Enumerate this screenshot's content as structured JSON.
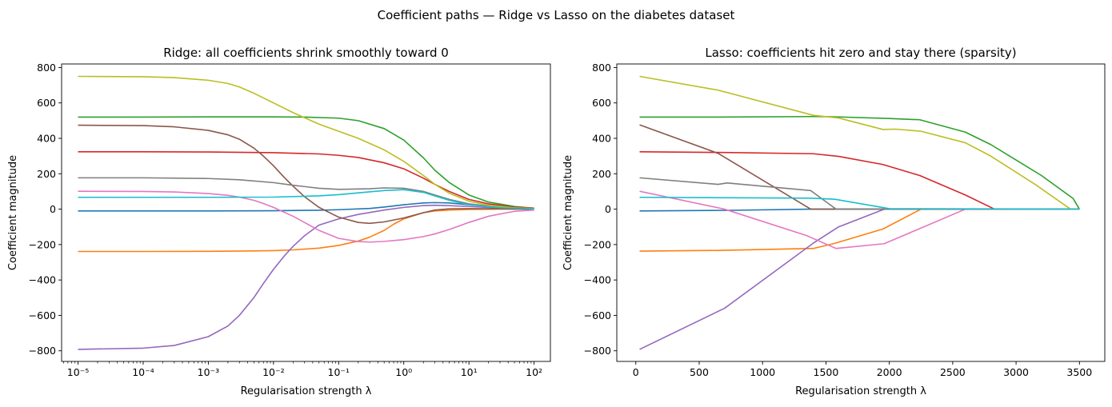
{
  "figure": {
    "suptitle": "Coefficient paths — Ridge vs Lasso on the diabetes dataset"
  },
  "colors": [
    "#1f77b4",
    "#ff7f0e",
    "#2ca02c",
    "#d62728",
    "#9467bd",
    "#8c564b",
    "#e377c2",
    "#7f7f7f",
    "#bcbd22",
    "#17becf"
  ],
  "chart_data": [
    {
      "type": "line",
      "title": "Ridge: all coefficients shrink smoothly toward 0",
      "xlabel": "Regularisation strength λ",
      "ylabel": "Coefficient magnitude",
      "xscale": "log",
      "xlim": [
        5.6e-06,
        178
      ],
      "ylim": [
        -860,
        820
      ],
      "xticks": [
        1e-05,
        0.0001,
        0.001,
        0.01,
        0.1,
        1,
        10,
        100
      ],
      "xtick_labels": [
        "10⁻⁵",
        "10⁻⁴",
        "10⁻³",
        "10⁻²",
        "10⁻¹",
        "10⁰",
        "10¹",
        "10²"
      ],
      "yticks": [
        -800,
        -600,
        -400,
        -200,
        0,
        200,
        400,
        600,
        800
      ],
      "ytick_labels": [
        "−800",
        "−600",
        "−400",
        "−200",
        "0",
        "200",
        "400",
        "600",
        "800"
      ],
      "grid": false,
      "series": [
        {
          "x": [
            1e-05,
            0.0001,
            0.001,
            0.01,
            0.05,
            0.1,
            0.3,
            0.5,
            1,
            2,
            3,
            5,
            10,
            30,
            100
          ],
          "y": [
            -10,
            -10,
            -10,
            -9,
            -6,
            -3,
            4,
            12,
            25,
            35,
            37,
            35,
            25,
            12,
            3
          ]
        },
        {
          "x": [
            1e-05,
            0.0001,
            0.001,
            0.005,
            0.01,
            0.02,
            0.05,
            0.1,
            0.2,
            0.3,
            0.5,
            0.7,
            1,
            2,
            3,
            5,
            10,
            30,
            100
          ],
          "y": [
            -239,
            -239,
            -238,
            -236,
            -234,
            -230,
            -220,
            -205,
            -180,
            -158,
            -120,
            -85,
            -55,
            -20,
            -10,
            -5,
            -2,
            0,
            0
          ]
        },
        {
          "x": [
            1e-05,
            0.0001,
            0.001,
            0.01,
            0.03,
            0.1,
            0.2,
            0.5,
            1,
            2,
            3,
            5,
            10,
            20,
            50,
            100
          ],
          "y": [
            520,
            520,
            521,
            521,
            520,
            514,
            500,
            455,
            390,
            290,
            220,
            150,
            80,
            40,
            15,
            6
          ]
        },
        {
          "x": [
            1e-05,
            0.0001,
            0.001,
            0.01,
            0.05,
            0.1,
            0.2,
            0.5,
            1,
            2,
            3,
            5,
            10,
            20,
            50,
            100
          ],
          "y": [
            324,
            324,
            323,
            319,
            312,
            304,
            292,
            262,
            228,
            175,
            140,
            100,
            55,
            30,
            12,
            5
          ]
        },
        {
          "x": [
            1e-05,
            0.0001,
            0.0003,
            0.001,
            0.002,
            0.003,
            0.005,
            0.007,
            0.01,
            0.015,
            0.02,
            0.03,
            0.05,
            0.1,
            0.2,
            0.5,
            1,
            2,
            3,
            5,
            10,
            30,
            100
          ],
          "y": [
            -792,
            -785,
            -770,
            -720,
            -660,
            -600,
            -500,
            -420,
            -340,
            -260,
            -210,
            -150,
            -90,
            -55,
            -30,
            -5,
            10,
            20,
            22,
            20,
            15,
            6,
            2
          ]
        },
        {
          "x": [
            1e-05,
            0.0001,
            0.0003,
            0.001,
            0.002,
            0.003,
            0.005,
            0.007,
            0.01,
            0.015,
            0.02,
            0.03,
            0.05,
            0.1,
            0.2,
            0.3,
            0.5,
            1,
            2,
            3,
            5,
            10,
            30,
            100
          ],
          "y": [
            474,
            472,
            465,
            445,
            420,
            395,
            345,
            300,
            245,
            175,
            130,
            70,
            10,
            -45,
            -75,
            -80,
            -72,
            -50,
            -20,
            -5,
            2,
            3,
            2,
            0
          ]
        },
        {
          "x": [
            1e-05,
            0.0001,
            0.0003,
            0.001,
            0.002,
            0.003,
            0.005,
            0.007,
            0.01,
            0.02,
            0.05,
            0.1,
            0.2,
            0.3,
            0.5,
            1,
            2,
            3,
            5,
            10,
            20,
            50,
            100
          ],
          "y": [
            101,
            100,
            97,
            88,
            78,
            68,
            50,
            32,
            10,
            -40,
            -120,
            -165,
            -183,
            -186,
            -182,
            -172,
            -155,
            -140,
            -115,
            -75,
            -40,
            -12,
            -5
          ]
        },
        {
          "x": [
            1e-05,
            0.0001,
            0.001,
            0.003,
            0.01,
            0.02,
            0.05,
            0.1,
            0.3,
            0.5,
            1,
            2,
            3,
            5,
            10,
            30,
            100
          ],
          "y": [
            177,
            177,
            173,
            166,
            150,
            135,
            118,
            112,
            115,
            120,
            118,
            100,
            80,
            55,
            30,
            10,
            3
          ]
        },
        {
          "x": [
            1e-05,
            0.0001,
            0.0003,
            0.001,
            0.002,
            0.003,
            0.005,
            0.01,
            0.02,
            0.05,
            0.1,
            0.2,
            0.5,
            1,
            2,
            3,
            5,
            10,
            20,
            50,
            100
          ],
          "y": [
            750,
            748,
            743,
            728,
            710,
            690,
            655,
            600,
            545,
            480,
            440,
            400,
            335,
            270,
            190,
            140,
            90,
            45,
            22,
            8,
            3
          ]
        },
        {
          "x": [
            1e-05,
            0.0001,
            0.001,
            0.01,
            0.05,
            0.1,
            0.2,
            0.5,
            1,
            2,
            3,
            5,
            10,
            30,
            100
          ],
          "y": [
            67,
            67,
            67,
            68,
            75,
            82,
            92,
            105,
            110,
            95,
            75,
            50,
            25,
            8,
            2
          ]
        }
      ]
    },
    {
      "type": "line",
      "title": "Lasso: coefficients hit zero and stay there (sparsity)",
      "xlabel": "Regularisation strength λ",
      "ylabel": "Coefficient magnitude",
      "xscale": "linear",
      "xlim": [
        -150,
        3700
      ],
      "ylim": [
        -860,
        820
      ],
      "xticks": [
        0,
        500,
        1000,
        1500,
        2000,
        2500,
        3000,
        3500
      ],
      "xtick_labels": [
        "0",
        "500",
        "1000",
        "1500",
        "2000",
        "2500",
        "3000",
        "3500"
      ],
      "yticks": [
        -800,
        -600,
        -400,
        -200,
        0,
        200,
        400,
        600,
        800
      ],
      "ytick_labels": [
        "−800",
        "−600",
        "−400",
        "−200",
        "0",
        "200",
        "400",
        "600",
        "800"
      ],
      "grid": false,
      "series": [
        {
          "x": [
            30,
            700,
            1380,
            2000,
            3500
          ],
          "y": [
            -10,
            -7,
            0,
            0,
            0
          ]
        },
        {
          "x": [
            30,
            650,
            1400,
            1560,
            1950,
            2250,
            3500
          ],
          "y": [
            -237,
            -233,
            -222,
            -195,
            -112,
            0,
            0
          ]
        },
        {
          "x": [
            30,
            650,
            1400,
            1550,
            2000,
            2240,
            2600,
            2800,
            3200,
            3450,
            3500
          ],
          "y": [
            520,
            520,
            523,
            522,
            512,
            505,
            435,
            365,
            190,
            60,
            0
          ]
        },
        {
          "x": [
            30,
            700,
            1400,
            1600,
            1950,
            2240,
            2600,
            2830,
            3500
          ],
          "y": [
            324,
            320,
            313,
            298,
            252,
            190,
            80,
            0,
            0
          ]
        },
        {
          "x": [
            30,
            650,
            700,
            1400,
            1600,
            1960,
            3500
          ],
          "y": [
            -792,
            -577,
            -560,
            -192,
            -100,
            0,
            0
          ]
        },
        {
          "x": [
            30,
            650,
            1380,
            3500
          ],
          "y": [
            476,
            315,
            0,
            0
          ]
        },
        {
          "x": [
            30,
            700,
            1350,
            1580,
            1960,
            2600,
            3500
          ],
          "y": [
            101,
            0,
            -150,
            -222,
            -195,
            0,
            0
          ]
        },
        {
          "x": [
            30,
            650,
            720,
            1380,
            1580,
            3500
          ],
          "y": [
            177,
            140,
            148,
            105,
            0,
            0
          ]
        },
        {
          "x": [
            30,
            650,
            1400,
            1600,
            1950,
            2050,
            2250,
            2600,
            2800,
            3150,
            3430,
            3500
          ],
          "y": [
            750,
            672,
            530,
            515,
            450,
            452,
            440,
            375,
            300,
            140,
            0,
            0
          ]
        },
        {
          "x": [
            30,
            1380,
            1570,
            2000,
            3500
          ],
          "y": [
            67,
            62,
            56,
            3,
            0
          ]
        }
      ]
    }
  ]
}
